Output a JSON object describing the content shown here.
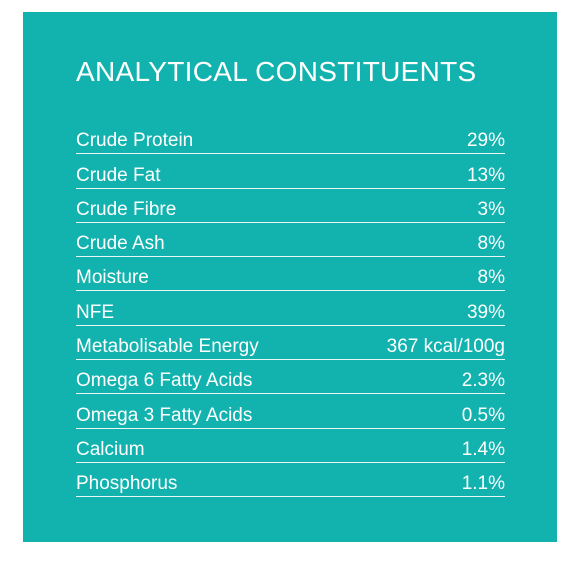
{
  "title": "ANALYTICAL CONSTITUENTS",
  "rows": [
    {
      "label": "Crude Protein",
      "value": "29%"
    },
    {
      "label": "Crude Fat",
      "value": "13%"
    },
    {
      "label": "Crude Fibre",
      "value": "3%"
    },
    {
      "label": "Crude Ash",
      "value": "8%"
    },
    {
      "label": "Moisture",
      "value": "8%"
    },
    {
      "label": "NFE",
      "value": "39%"
    },
    {
      "label": "Metabolisable Energy",
      "value": "367 kcal/100g"
    },
    {
      "label": "Omega 6 Fatty Acids",
      "value": "2.3%"
    },
    {
      "label": "Omega 3 Fatty Acids",
      "value": "0.5%"
    },
    {
      "label": "Calcium",
      "value": "1.4%"
    },
    {
      "label": "Phosphorus",
      "value": "1.1%"
    }
  ],
  "colors": {
    "panel": "#12b3af",
    "text": "#ffffff"
  }
}
